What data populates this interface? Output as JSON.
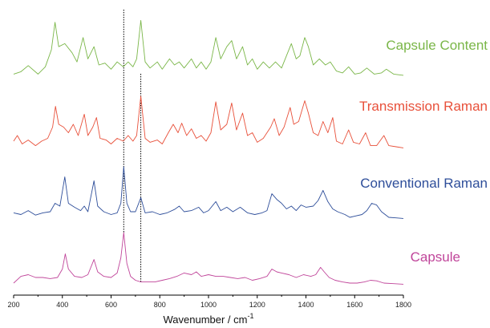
{
  "chart_data": {
    "type": "line",
    "title": "",
    "xlabel": "Wavenumber / cm",
    "xlabel_superscript": "-1",
    "ylabel": "",
    "xlim": [
      200,
      1800
    ],
    "x_ticks": [
      200,
      400,
      600,
      800,
      1000,
      1200,
      1400,
      1600,
      1800
    ],
    "y_axis_visible": false,
    "grid": false,
    "legend": "none",
    "reference_lines": [
      {
        "x": 652,
        "style": "dotted",
        "color": "#000000"
      },
      {
        "x": 722,
        "style": "dotted",
        "color": "#000000"
      }
    ],
    "series": [
      {
        "name": "Capsule Content",
        "color": "#7ab648",
        "label_color": "#7ab648",
        "baseline": 0.08,
        "points": [
          [
            200,
            0.1
          ],
          [
            230,
            0.14
          ],
          [
            260,
            0.24
          ],
          [
            300,
            0.1
          ],
          [
            330,
            0.22
          ],
          [
            355,
            0.5
          ],
          [
            370,
            0.95
          ],
          [
            385,
            0.55
          ],
          [
            410,
            0.6
          ],
          [
            440,
            0.45
          ],
          [
            460,
            0.3
          ],
          [
            485,
            0.7
          ],
          [
            505,
            0.35
          ],
          [
            530,
            0.55
          ],
          [
            550,
            0.25
          ],
          [
            575,
            0.28
          ],
          [
            600,
            0.18
          ],
          [
            625,
            0.3
          ],
          [
            650,
            0.22
          ],
          [
            670,
            0.3
          ],
          [
            690,
            0.22
          ],
          [
            705,
            0.35
          ],
          [
            722,
            0.98
          ],
          [
            740,
            0.3
          ],
          [
            760,
            0.2
          ],
          [
            790,
            0.3
          ],
          [
            810,
            0.18
          ],
          [
            840,
            0.35
          ],
          [
            860,
            0.25
          ],
          [
            880,
            0.3
          ],
          [
            900,
            0.2
          ],
          [
            930,
            0.35
          ],
          [
            950,
            0.2
          ],
          [
            970,
            0.3
          ],
          [
            990,
            0.18
          ],
          [
            1010,
            0.3
          ],
          [
            1030,
            0.7
          ],
          [
            1050,
            0.35
          ],
          [
            1075,
            0.55
          ],
          [
            1095,
            0.65
          ],
          [
            1115,
            0.35
          ],
          [
            1140,
            0.55
          ],
          [
            1160,
            0.25
          ],
          [
            1180,
            0.35
          ],
          [
            1200,
            0.18
          ],
          [
            1225,
            0.3
          ],
          [
            1250,
            0.2
          ],
          [
            1275,
            0.3
          ],
          [
            1300,
            0.2
          ],
          [
            1320,
            0.4
          ],
          [
            1340,
            0.6
          ],
          [
            1360,
            0.35
          ],
          [
            1375,
            0.4
          ],
          [
            1395,
            0.7
          ],
          [
            1410,
            0.55
          ],
          [
            1430,
            0.25
          ],
          [
            1455,
            0.35
          ],
          [
            1480,
            0.25
          ],
          [
            1500,
            0.3
          ],
          [
            1525,
            0.15
          ],
          [
            1550,
            0.12
          ],
          [
            1575,
            0.22
          ],
          [
            1600,
            0.1
          ],
          [
            1625,
            0.12
          ],
          [
            1650,
            0.2
          ],
          [
            1680,
            0.1
          ],
          [
            1710,
            0.12
          ],
          [
            1730,
            0.18
          ],
          [
            1760,
            0.1
          ],
          [
            1800,
            0.08
          ]
        ]
      },
      {
        "name": "Transmission Raman",
        "color": "#e8503a",
        "label_color": "#e8503a",
        "baseline": 0.08,
        "points": [
          [
            200,
            0.2
          ],
          [
            215,
            0.3
          ],
          [
            235,
            0.15
          ],
          [
            260,
            0.22
          ],
          [
            290,
            0.12
          ],
          [
            315,
            0.2
          ],
          [
            340,
            0.25
          ],
          [
            360,
            0.45
          ],
          [
            372,
            0.82
          ],
          [
            385,
            0.5
          ],
          [
            405,
            0.45
          ],
          [
            425,
            0.35
          ],
          [
            445,
            0.5
          ],
          [
            465,
            0.3
          ],
          [
            490,
            0.68
          ],
          [
            505,
            0.3
          ],
          [
            525,
            0.45
          ],
          [
            540,
            0.62
          ],
          [
            555,
            0.25
          ],
          [
            580,
            0.22
          ],
          [
            600,
            0.15
          ],
          [
            625,
            0.25
          ],
          [
            650,
            0.2
          ],
          [
            670,
            0.3
          ],
          [
            690,
            0.2
          ],
          [
            705,
            0.3
          ],
          [
            722,
            1.0
          ],
          [
            740,
            0.25
          ],
          [
            760,
            0.18
          ],
          [
            790,
            0.22
          ],
          [
            810,
            0.15
          ],
          [
            835,
            0.35
          ],
          [
            855,
            0.5
          ],
          [
            875,
            0.35
          ],
          [
            890,
            0.52
          ],
          [
            910,
            0.3
          ],
          [
            930,
            0.42
          ],
          [
            950,
            0.25
          ],
          [
            970,
            0.3
          ],
          [
            990,
            0.2
          ],
          [
            1010,
            0.35
          ],
          [
            1030,
            0.9
          ],
          [
            1050,
            0.4
          ],
          [
            1075,
            0.5
          ],
          [
            1095,
            0.88
          ],
          [
            1115,
            0.4
          ],
          [
            1140,
            0.7
          ],
          [
            1160,
            0.3
          ],
          [
            1180,
            0.35
          ],
          [
            1200,
            0.18
          ],
          [
            1225,
            0.25
          ],
          [
            1255,
            0.45
          ],
          [
            1270,
            0.6
          ],
          [
            1290,
            0.3
          ],
          [
            1310,
            0.45
          ],
          [
            1335,
            0.8
          ],
          [
            1350,
            0.5
          ],
          [
            1370,
            0.55
          ],
          [
            1395,
            0.92
          ],
          [
            1410,
            0.7
          ],
          [
            1430,
            0.35
          ],
          [
            1450,
            0.3
          ],
          [
            1470,
            0.55
          ],
          [
            1490,
            0.35
          ],
          [
            1510,
            0.62
          ],
          [
            1525,
            0.2
          ],
          [
            1550,
            0.15
          ],
          [
            1575,
            0.4
          ],
          [
            1595,
            0.18
          ],
          [
            1620,
            0.15
          ],
          [
            1645,
            0.35
          ],
          [
            1665,
            0.12
          ],
          [
            1690,
            0.12
          ],
          [
            1720,
            0.3
          ],
          [
            1740,
            0.12
          ],
          [
            1770,
            0.1
          ],
          [
            1800,
            0.08
          ]
        ]
      },
      {
        "name": "Conventional Raman",
        "color": "#2e4e9a",
        "label_color": "#2e4e9a",
        "baseline": 0.08,
        "points": [
          [
            200,
            0.18
          ],
          [
            230,
            0.15
          ],
          [
            260,
            0.22
          ],
          [
            290,
            0.14
          ],
          [
            320,
            0.18
          ],
          [
            350,
            0.2
          ],
          [
            370,
            0.35
          ],
          [
            390,
            0.3
          ],
          [
            410,
            0.82
          ],
          [
            425,
            0.35
          ],
          [
            450,
            0.28
          ],
          [
            475,
            0.22
          ],
          [
            490,
            0.3
          ],
          [
            505,
            0.2
          ],
          [
            530,
            0.75
          ],
          [
            545,
            0.3
          ],
          [
            570,
            0.2
          ],
          [
            600,
            0.15
          ],
          [
            625,
            0.18
          ],
          [
            640,
            0.35
          ],
          [
            652,
            1.0
          ],
          [
            665,
            0.35
          ],
          [
            680,
            0.2
          ],
          [
            700,
            0.2
          ],
          [
            722,
            0.45
          ],
          [
            740,
            0.18
          ],
          [
            770,
            0.2
          ],
          [
            800,
            0.15
          ],
          [
            830,
            0.18
          ],
          [
            860,
            0.24
          ],
          [
            880,
            0.3
          ],
          [
            900,
            0.2
          ],
          [
            930,
            0.22
          ],
          [
            960,
            0.28
          ],
          [
            980,
            0.18
          ],
          [
            1000,
            0.22
          ],
          [
            1030,
            0.38
          ],
          [
            1050,
            0.22
          ],
          [
            1075,
            0.28
          ],
          [
            1100,
            0.2
          ],
          [
            1130,
            0.28
          ],
          [
            1160,
            0.18
          ],
          [
            1190,
            0.15
          ],
          [
            1220,
            0.18
          ],
          [
            1240,
            0.22
          ],
          [
            1260,
            0.52
          ],
          [
            1280,
            0.42
          ],
          [
            1300,
            0.35
          ],
          [
            1320,
            0.25
          ],
          [
            1340,
            0.3
          ],
          [
            1360,
            0.22
          ],
          [
            1380,
            0.32
          ],
          [
            1400,
            0.28
          ],
          [
            1430,
            0.3
          ],
          [
            1450,
            0.4
          ],
          [
            1470,
            0.58
          ],
          [
            1490,
            0.38
          ],
          [
            1510,
            0.25
          ],
          [
            1530,
            0.2
          ],
          [
            1560,
            0.15
          ],
          [
            1580,
            0.1
          ],
          [
            1600,
            0.12
          ],
          [
            1630,
            0.15
          ],
          [
            1650,
            0.22
          ],
          [
            1670,
            0.35
          ],
          [
            1690,
            0.32
          ],
          [
            1710,
            0.2
          ],
          [
            1740,
            0.1
          ],
          [
            1770,
            0.09
          ],
          [
            1800,
            0.08
          ]
        ]
      },
      {
        "name": "Capsule",
        "color": "#c0459a",
        "label_color": "#c0459a",
        "baseline": 0.08,
        "points": [
          [
            200,
            0.1
          ],
          [
            230,
            0.22
          ],
          [
            260,
            0.25
          ],
          [
            290,
            0.2
          ],
          [
            320,
            0.2
          ],
          [
            350,
            0.18
          ],
          [
            380,
            0.2
          ],
          [
            400,
            0.35
          ],
          [
            412,
            0.62
          ],
          [
            425,
            0.35
          ],
          [
            450,
            0.22
          ],
          [
            480,
            0.2
          ],
          [
            505,
            0.25
          ],
          [
            530,
            0.52
          ],
          [
            545,
            0.3
          ],
          [
            570,
            0.22
          ],
          [
            600,
            0.2
          ],
          [
            625,
            0.28
          ],
          [
            640,
            0.55
          ],
          [
            652,
            1.0
          ],
          [
            665,
            0.45
          ],
          [
            680,
            0.22
          ],
          [
            700,
            0.15
          ],
          [
            722,
            0.12
          ],
          [
            750,
            0.12
          ],
          [
            780,
            0.12
          ],
          [
            810,
            0.15
          ],
          [
            840,
            0.18
          ],
          [
            870,
            0.22
          ],
          [
            900,
            0.28
          ],
          [
            930,
            0.25
          ],
          [
            950,
            0.3
          ],
          [
            970,
            0.22
          ],
          [
            1000,
            0.25
          ],
          [
            1030,
            0.22
          ],
          [
            1060,
            0.22
          ],
          [
            1090,
            0.2
          ],
          [
            1120,
            0.18
          ],
          [
            1150,
            0.2
          ],
          [
            1180,
            0.15
          ],
          [
            1210,
            0.18
          ],
          [
            1240,
            0.22
          ],
          [
            1260,
            0.35
          ],
          [
            1280,
            0.3
          ],
          [
            1300,
            0.28
          ],
          [
            1330,
            0.25
          ],
          [
            1360,
            0.2
          ],
          [
            1390,
            0.25
          ],
          [
            1420,
            0.22
          ],
          [
            1440,
            0.25
          ],
          [
            1460,
            0.38
          ],
          [
            1475,
            0.3
          ],
          [
            1495,
            0.2
          ],
          [
            1520,
            0.15
          ],
          [
            1550,
            0.12
          ],
          [
            1580,
            0.1
          ],
          [
            1610,
            0.1
          ],
          [
            1640,
            0.12
          ],
          [
            1665,
            0.15
          ],
          [
            1690,
            0.14
          ],
          [
            1720,
            0.1
          ],
          [
            1760,
            0.09
          ],
          [
            1800,
            0.08
          ]
        ]
      }
    ]
  }
}
